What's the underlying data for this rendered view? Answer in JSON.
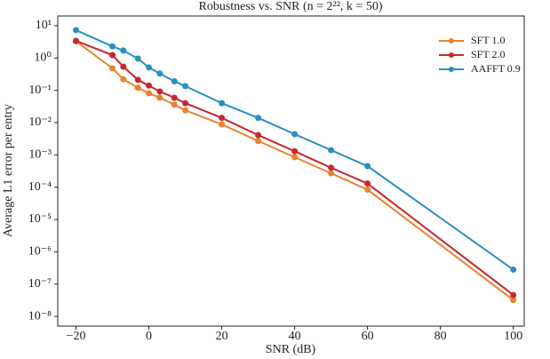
{
  "chart_data": {
    "type": "line",
    "title": "Robustness vs. SNR (n = 2²², k = 50)",
    "x_label": "SNR (dB)",
    "y_label": "Average L1 error per entry",
    "x": [
      -20,
      -10,
      -7,
      -3,
      0,
      3,
      7,
      10,
      20,
      30,
      40,
      50,
      60,
      100
    ],
    "series": [
      {
        "name": "SFT 1.0",
        "color": "#e8822f",
        "values": [
          3.3,
          0.48,
          0.22,
          0.12,
          0.081,
          0.059,
          0.036,
          0.024,
          0.0088,
          0.0027,
          0.00085,
          0.00027,
          8.4e-05,
          3.2e-08
        ]
      },
      {
        "name": "SFT 2.0",
        "color": "#c8282d",
        "values": [
          3.4,
          1.23,
          0.54,
          0.21,
          0.14,
          0.092,
          0.059,
          0.04,
          0.014,
          0.0041,
          0.0013,
          0.0004,
          0.00013,
          4.6e-08
        ]
      },
      {
        "name": "AAFFT 0.9",
        "color": "#2a8fc4",
        "values": [
          7.3,
          2.3,
          1.7,
          0.96,
          0.51,
          0.33,
          0.19,
          0.135,
          0.04,
          0.014,
          0.0044,
          0.0014,
          0.00045,
          2.8e-07
        ]
      }
    ],
    "xlim": [
      -25,
      103
    ],
    "xticks": [
      {
        "value": -20,
        "label": "−20"
      },
      0,
      20,
      40,
      60,
      80,
      100
    ],
    "ylim": [
      5e-09,
      20
    ],
    "yticks": [
      {
        "value": 1e-08,
        "label": "10⁻⁸"
      },
      {
        "value": 1e-07,
        "label": "10⁻⁷"
      },
      {
        "value": 1e-06,
        "label": "10⁻⁶"
      },
      {
        "value": 1e-05,
        "label": "10⁻⁵"
      },
      {
        "value": 0.0001,
        "label": "10⁻⁴"
      },
      {
        "value": 0.001,
        "label": "10⁻³"
      },
      {
        "value": 0.01,
        "label": "10⁻²"
      },
      {
        "value": 0.1,
        "label": "10⁻¹"
      },
      {
        "value": 1,
        "label": "10⁰"
      },
      {
        "value": 10,
        "label": "10¹"
      }
    ],
    "log_y": true,
    "grid": false,
    "legend": "upper right"
  }
}
